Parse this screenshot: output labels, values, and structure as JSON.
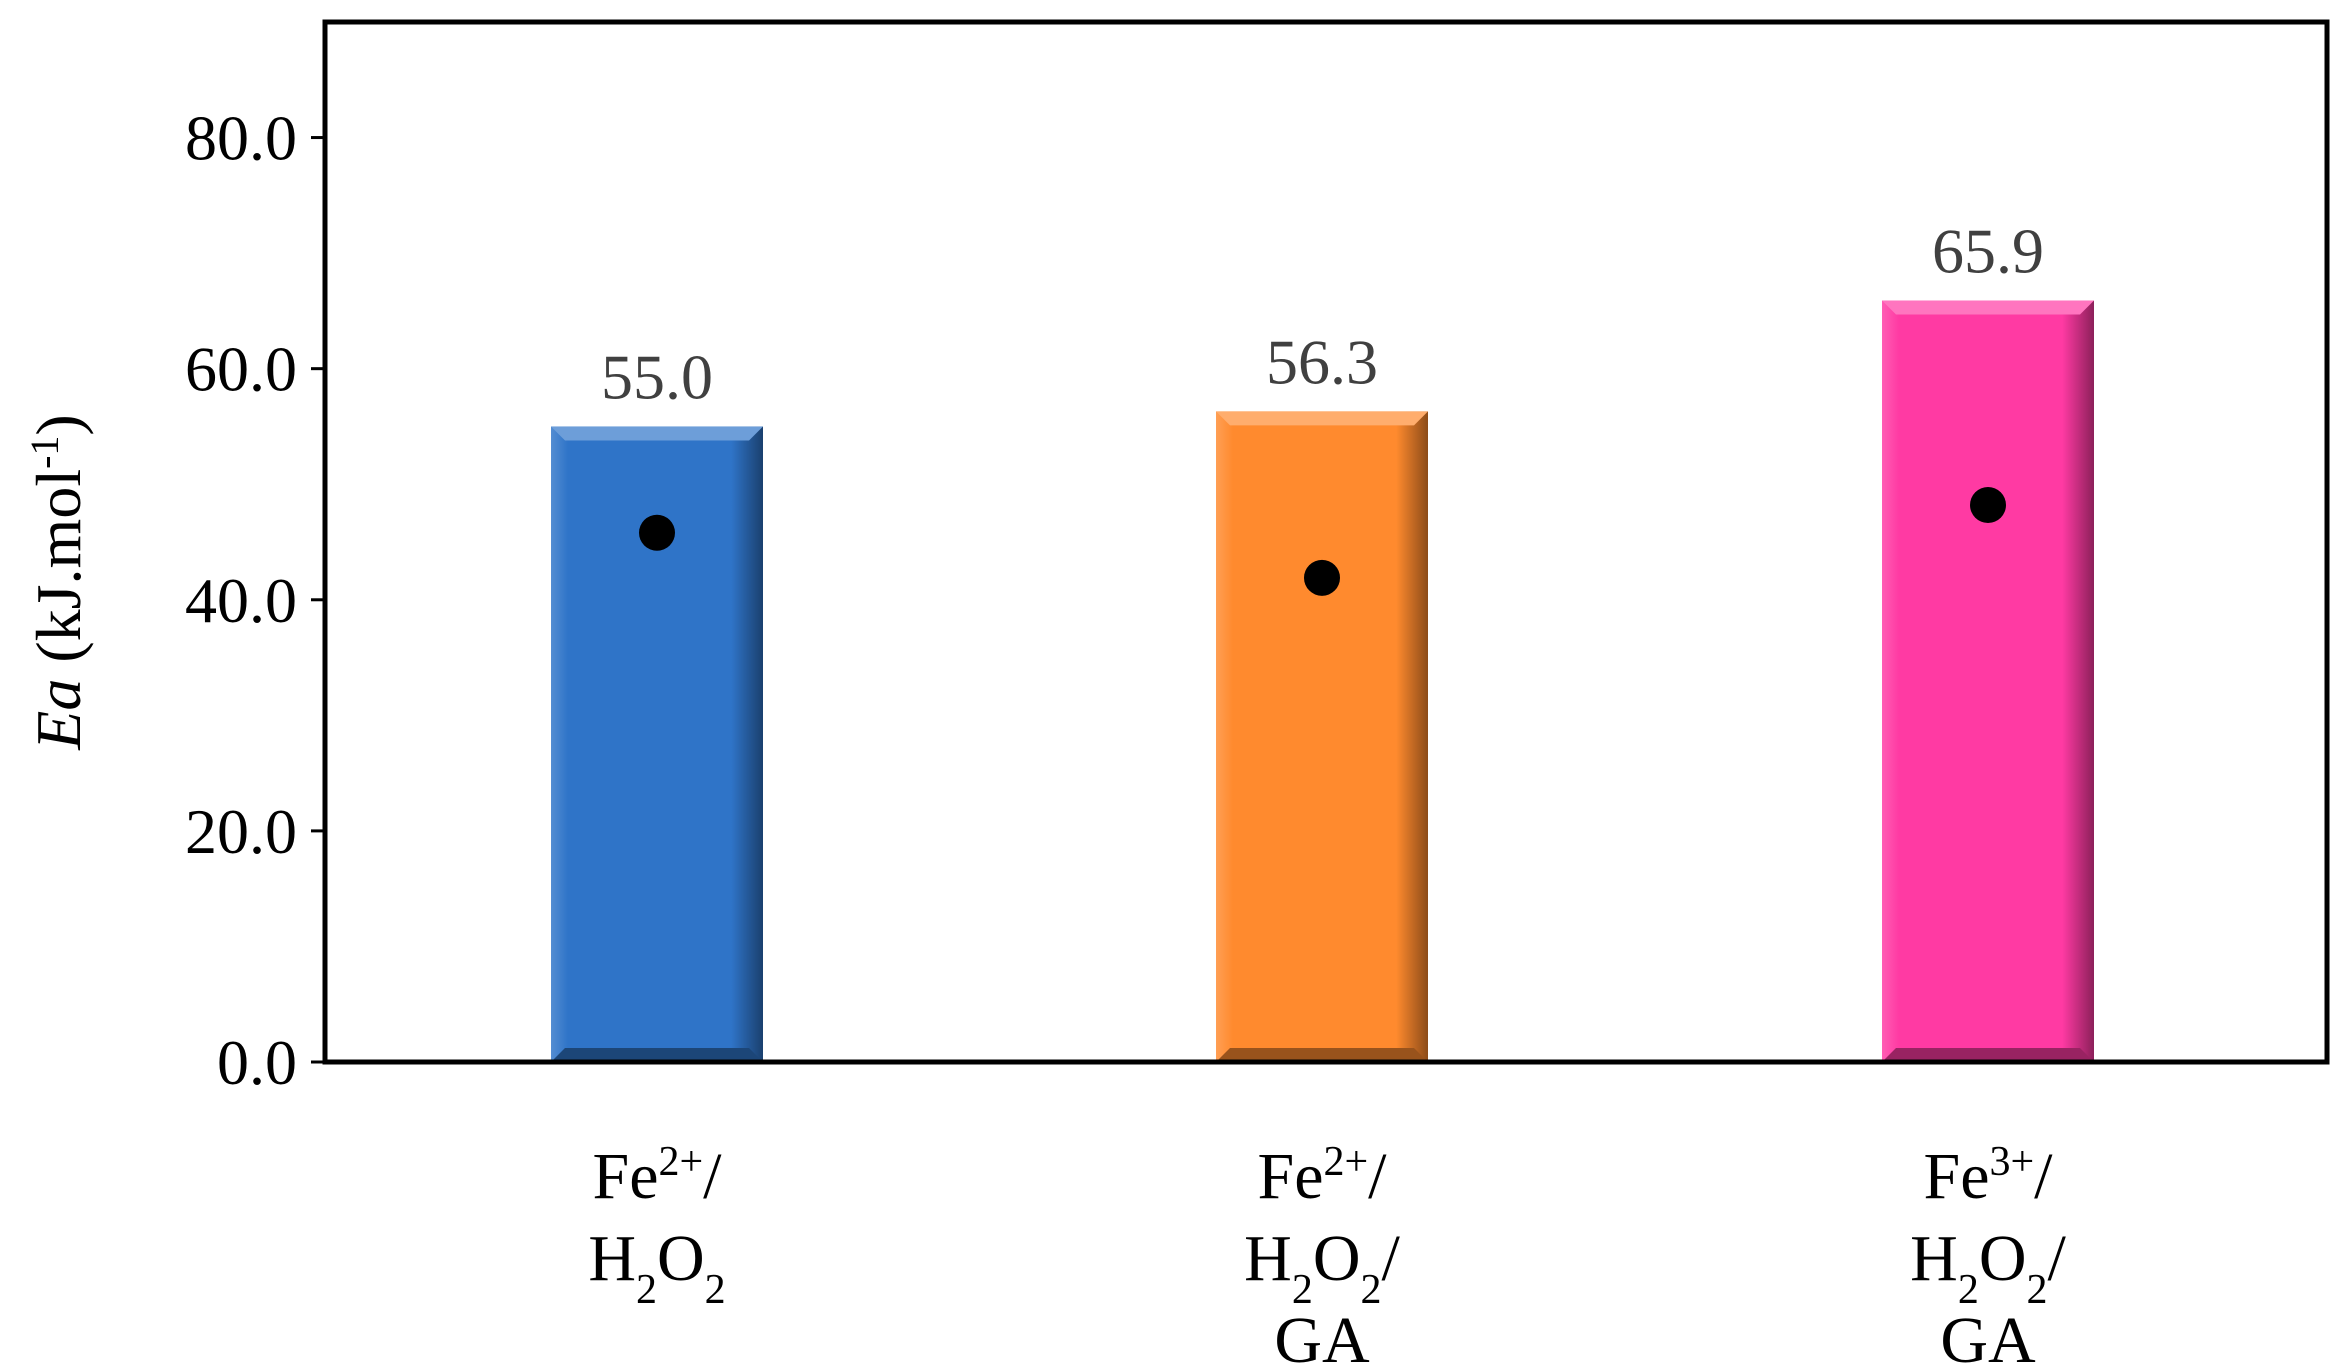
{
  "chart_data": {
    "type": "bar",
    "title": "",
    "xlabel": "",
    "ylabel": {
      "italic": "Ea",
      "rest": " (kJ.mol",
      "sup": "-1",
      "close": ")"
    },
    "ylim": [
      0,
      90
    ],
    "yticks": [
      {
        "value": 0,
        "label": "0.0"
      },
      {
        "value": 20,
        "label": "20.0"
      },
      {
        "value": 40,
        "label": "40.0"
      },
      {
        "value": 60,
        "label": "60.0"
      },
      {
        "value": 80,
        "label": "80.0"
      }
    ],
    "grid": false,
    "legend": "none",
    "categories": [
      {
        "lines": [
          [
            {
              "t": "Fe"
            },
            {
              "t": "2+",
              "sup": true
            },
            {
              "t": "/"
            }
          ],
          [
            {
              "t": "H"
            },
            {
              "t": "2",
              "sub": true
            },
            {
              "t": "O"
            },
            {
              "t": "2",
              "sub": true
            }
          ]
        ]
      },
      {
        "lines": [
          [
            {
              "t": "Fe"
            },
            {
              "t": "2+",
              "sup": true
            },
            {
              "t": "/"
            }
          ],
          [
            {
              "t": "H"
            },
            {
              "t": "2",
              "sub": true
            },
            {
              "t": "O"
            },
            {
              "t": "2",
              "sub": true
            },
            {
              "t": "/"
            }
          ],
          [
            {
              "t": "GA"
            }
          ]
        ]
      },
      {
        "lines": [
          [
            {
              "t": "Fe"
            },
            {
              "t": "3+",
              "sup": true
            },
            {
              "t": "/"
            }
          ],
          [
            {
              "t": "H"
            },
            {
              "t": "2",
              "sub": true
            },
            {
              "t": "O"
            },
            {
              "t": "2",
              "sub": true
            },
            {
              "t": "/"
            }
          ],
          [
            {
              "t": "GA"
            }
          ]
        ]
      }
    ],
    "values": [
      55.0,
      56.3,
      65.9
    ],
    "value_labels": [
      "55.0",
      "56.3",
      "65.9"
    ],
    "markers": [
      45.8,
      41.9,
      48.2
    ],
    "colors": [
      "#2f74c8",
      "#ff8a2e",
      "#ff3aa3"
    ],
    "marker_color": "#000000",
    "axis_color": "#000000"
  }
}
